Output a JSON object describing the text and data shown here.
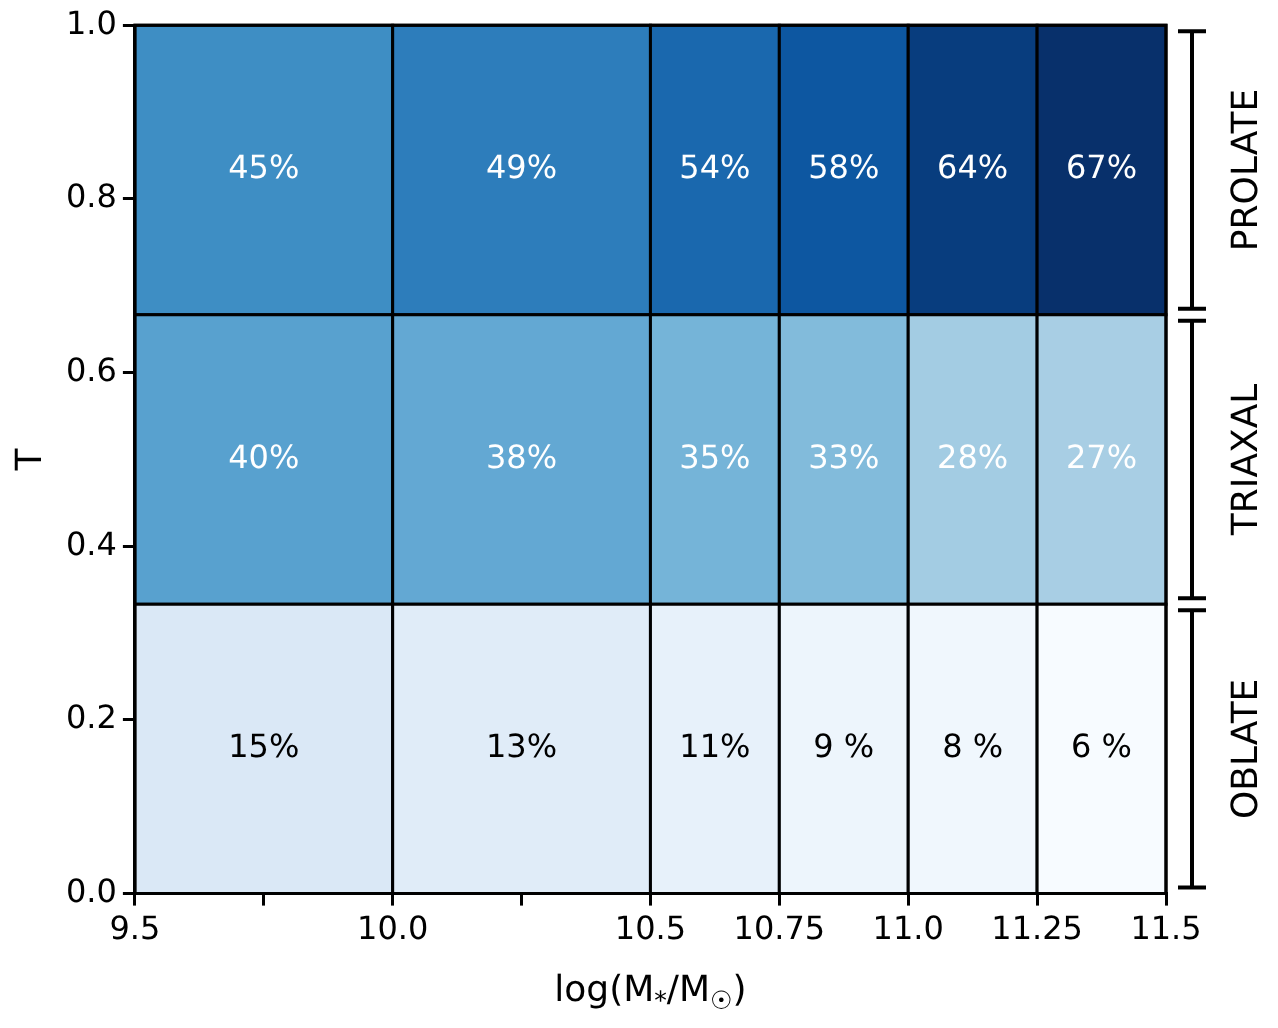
{
  "chart_data": {
    "type": "heatmap",
    "xlabel": "log(M$_{*}$/M$_{☉}$)",
    "ylabel": "T",
    "x": [
      9.75,
      10.25,
      10.625,
      10.875,
      11.125,
      11.375
    ],
    "cells": [
      [
        45,
        49,
        54,
        58,
        64,
        67
      ],
      [
        40,
        38,
        35,
        33,
        28,
        27
      ],
      [
        15,
        13,
        11,
        9,
        8,
        6
      ]
    ],
    "cell_labels": [
      [
        "45%",
        "49%",
        "54%",
        "58%",
        "64%",
        "67%"
      ],
      [
        "40%",
        "38%",
        "35%",
        "33%",
        "28%",
        "27%"
      ],
      [
        "15%",
        "13%",
        "11%",
        "9 %",
        "8 %",
        "6 %"
      ]
    ],
    "xlim": [
      9.5,
      11.5
    ],
    "xticks": [
      9.5,
      {
        "value": 9.75,
        "label": null
      },
      {
        "value": 10.0,
        "label": "10.0"
      },
      {
        "value": 10.25,
        "label": null
      },
      10.5,
      10.75,
      {
        "value": 11.0,
        "label": "11.0"
      },
      11.25,
      11.5
    ],
    "ylim": [
      0,
      1
    ],
    "yticks": [
      {
        "value": 0,
        "label": "0.0"
      },
      0.2,
      0.4,
      0.6,
      0.8,
      {
        "value": 1,
        "label": "1.0"
      }
    ],
    "annotations": [
      "PROLATE",
      "TRIAXAL",
      "OBLATE"
    ]
  }
}
